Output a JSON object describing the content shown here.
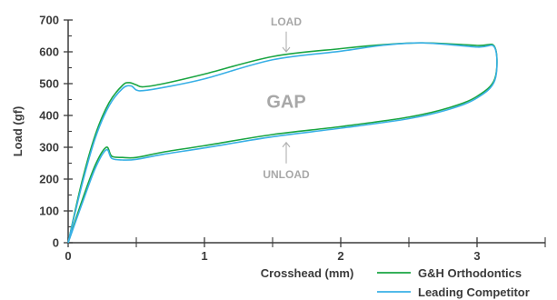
{
  "chart_data": {
    "type": "line",
    "title": "",
    "xlabel": "Crosshead (mm)",
    "ylabel": "Load (gf)",
    "xlim": [
      0,
      3.5
    ],
    "ylim": [
      0,
      700
    ],
    "xticks": [
      0,
      1,
      2,
      3
    ],
    "yticks": [
      0,
      100,
      200,
      300,
      400,
      500,
      600,
      700
    ],
    "xtick_labels": [
      "0",
      "1",
      "2",
      "3"
    ],
    "ytick_labels": [
      "0",
      "100",
      "200",
      "300",
      "400",
      "500",
      "600",
      "700"
    ],
    "grid": false,
    "legend_position": "bottom-right",
    "annotations": [
      {
        "text": "LOAD",
        "x": 1.6,
        "y": 695,
        "arrow_to_y": 600,
        "size": "small"
      },
      {
        "text": "GAP",
        "x": 1.6,
        "y": 450,
        "size": "large"
      },
      {
        "text": "UNLOAD",
        "x": 1.6,
        "y": 215,
        "arrow_to_y": 315,
        "size": "small"
      }
    ],
    "series": [
      {
        "name": "G&H Orthodontics",
        "color": "#1aa542",
        "x": [
          0,
          0.1,
          0.2,
          0.3,
          0.4,
          0.45,
          0.5,
          0.55,
          0.7,
          1.0,
          1.5,
          2.0,
          2.3,
          2.6,
          3.0,
          3.13,
          3.13,
          3.0,
          2.8,
          2.5,
          2.0,
          1.5,
          1.0,
          0.7,
          0.5,
          0.4,
          0.32,
          0.28,
          0.2,
          0.1,
          0
        ],
        "y": [
          0,
          190,
          340,
          440,
          495,
          503,
          496,
          490,
          500,
          530,
          585,
          610,
          622,
          628,
          620,
          615,
          515,
          460,
          425,
          395,
          365,
          340,
          305,
          285,
          268,
          268,
          272,
          300,
          245,
          130,
          0
        ]
      },
      {
        "name": "Leading Competitor",
        "color": "#39b0e6",
        "x": [
          0,
          0.1,
          0.2,
          0.3,
          0.4,
          0.46,
          0.5,
          0.55,
          0.7,
          1.0,
          1.5,
          2.0,
          2.3,
          2.6,
          3.0,
          3.13,
          3.13,
          3.0,
          2.8,
          2.5,
          2.0,
          1.5,
          1.0,
          0.7,
          0.5,
          0.4,
          0.32,
          0.28,
          0.2,
          0.1,
          0
        ],
        "y": [
          0,
          180,
          330,
          430,
          485,
          493,
          480,
          478,
          488,
          515,
          575,
          602,
          620,
          628,
          615,
          613,
          510,
          455,
          420,
          390,
          360,
          333,
          298,
          278,
          262,
          260,
          265,
          292,
          235,
          120,
          0
        ]
      }
    ]
  }
}
